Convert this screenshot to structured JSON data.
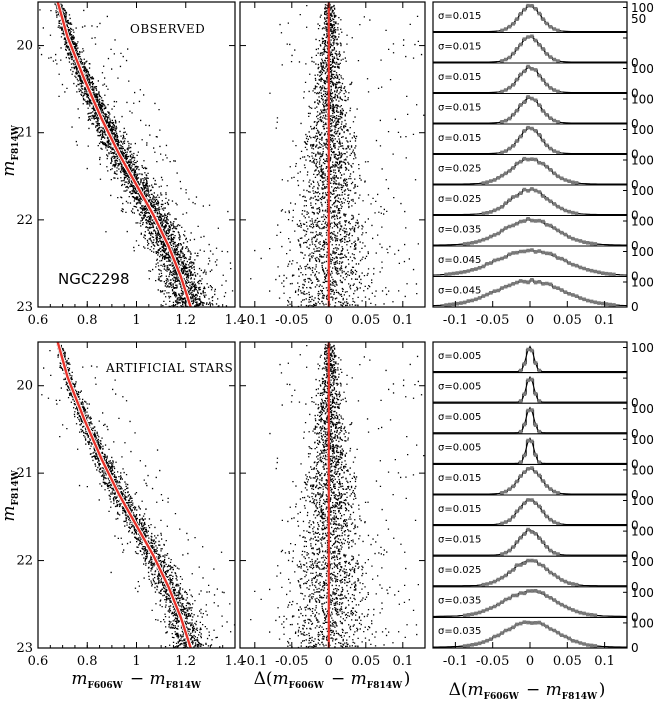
{
  "chart_data": [
    {
      "type": "scatter",
      "panel": "top-left",
      "annotation": "OBSERVED",
      "cluster_label": "NGC2298",
      "xlabel": "",
      "ylabel": "m_F814W",
      "xlim": [
        0.6,
        1.4
      ],
      "ylim": [
        23,
        19.5
      ],
      "xticks": [
        "0.6",
        "0.8",
        "1",
        "1.2",
        "1.4"
      ],
      "yticks": [
        "20",
        "21",
        "22",
        "23"
      ],
      "fiducial_line": {
        "color": "#e8342c",
        "points": [
          [
            0.68,
            19.5
          ],
          [
            0.72,
            19.9
          ],
          [
            0.79,
            20.4
          ],
          [
            0.86,
            20.85
          ],
          [
            0.93,
            21.25
          ],
          [
            1.0,
            21.6
          ],
          [
            1.07,
            21.95
          ],
          [
            1.13,
            22.3
          ],
          [
            1.18,
            22.65
          ],
          [
            1.22,
            23.0
          ]
        ]
      }
    },
    {
      "type": "scatter",
      "panel": "top-middle",
      "xlabel": "",
      "xlim": [
        -0.12,
        0.13
      ],
      "ylim": [
        23,
        19.5
      ],
      "xticks": [
        "-0.1",
        "-0.05",
        "0",
        "0.05",
        "0.1"
      ],
      "reference_line": {
        "x": 0,
        "color": "#e8342c"
      }
    },
    {
      "type": "histogram",
      "panel": "top-right",
      "xlim": [
        -0.13,
        0.13
      ],
      "xticks": [
        "-0.1",
        "-0.05",
        "0",
        "0.05",
        "0.1"
      ],
      "bins": [
        {
          "sigma_label": "σ=0.015",
          "sigma": 0.015,
          "ytick_top": "100",
          "ytick_mid": "50",
          "ytick_bottom": ""
        },
        {
          "sigma_label": "σ=0.015",
          "sigma": 0.015,
          "ytick_top": "",
          "ytick_bottom": "0"
        },
        {
          "sigma_label": "σ=0.015",
          "sigma": 0.015,
          "ytick_top": "100",
          "ytick_bottom": "0"
        },
        {
          "sigma_label": "σ=0.015",
          "sigma": 0.015,
          "ytick_top": "100",
          "ytick_bottom": "0"
        },
        {
          "sigma_label": "σ=0.015",
          "sigma": 0.015,
          "ytick_top": "100",
          "ytick_bottom": "0"
        },
        {
          "sigma_label": "σ=0.025",
          "sigma": 0.025,
          "ytick_top": "100",
          "ytick_bottom": "0"
        },
        {
          "sigma_label": "σ=0.025",
          "sigma": 0.025,
          "ytick_top": "100",
          "ytick_bottom": "0"
        },
        {
          "sigma_label": "σ=0.035",
          "sigma": 0.035,
          "ytick_top": "100",
          "ytick_bottom": "0"
        },
        {
          "sigma_label": "σ=0.045",
          "sigma": 0.045,
          "ytick_top": "100",
          "ytick_bottom": "0"
        },
        {
          "sigma_label": "σ=0.045",
          "sigma": 0.045,
          "ytick_top": "100",
          "ytick_bottom": "0"
        }
      ]
    },
    {
      "type": "scatter",
      "panel": "bottom-left",
      "annotation": "ARTIFICIAL STARS",
      "xlabel": "m_F606W − m_F814W",
      "ylabel": "m_F814W",
      "xlim": [
        0.6,
        1.4
      ],
      "ylim": [
        23,
        19.5
      ],
      "xticks": [
        "0.6",
        "0.8",
        "1",
        "1.2",
        "1.4"
      ],
      "yticks": [
        "20",
        "21",
        "22",
        "23"
      ],
      "fiducial_line": {
        "color": "#e8342c",
        "points": [
          [
            0.68,
            19.5
          ],
          [
            0.72,
            19.9
          ],
          [
            0.79,
            20.4
          ],
          [
            0.86,
            20.85
          ],
          [
            0.93,
            21.25
          ],
          [
            1.0,
            21.6
          ],
          [
            1.07,
            21.95
          ],
          [
            1.13,
            22.3
          ],
          [
            1.18,
            22.65
          ],
          [
            1.22,
            23.0
          ]
        ]
      }
    },
    {
      "type": "scatter",
      "panel": "bottom-middle",
      "xlabel": "Δ(m_F606W − m_F814W)",
      "xlim": [
        -0.12,
        0.13
      ],
      "ylim": [
        23,
        19.5
      ],
      "xticks": [
        "-0.1",
        "-0.05",
        "0",
        "0.05",
        "0.1"
      ],
      "reference_line": {
        "x": 0,
        "color": "#e8342c"
      }
    },
    {
      "type": "histogram",
      "panel": "bottom-right",
      "xlabel": "Δ(m_F606W − m_F814W)",
      "xlim": [
        -0.13,
        0.13
      ],
      "xticks": [
        "-0.1",
        "-0.05",
        "0",
        "0.05",
        "0.1"
      ],
      "bins": [
        {
          "sigma_label": "σ=0.005",
          "sigma": 0.005,
          "ytick_top": "100",
          "ytick_bottom": ""
        },
        {
          "sigma_label": "σ=0.005",
          "sigma": 0.005,
          "ytick_top": "",
          "ytick_bottom": "0"
        },
        {
          "sigma_label": "σ=0.005",
          "sigma": 0.005,
          "ytick_top": "100",
          "ytick_bottom": "0"
        },
        {
          "sigma_label": "σ=0.005",
          "sigma": 0.005,
          "ytick_top": "100",
          "ytick_bottom": "0"
        },
        {
          "sigma_label": "σ=0.015",
          "sigma": 0.015,
          "ytick_top": "100",
          "ytick_bottom": "0"
        },
        {
          "sigma_label": "σ=0.015",
          "sigma": 0.015,
          "ytick_top": "100",
          "ytick_bottom": "0"
        },
        {
          "sigma_label": "σ=0.015",
          "sigma": 0.015,
          "ytick_top": "100",
          "ytick_bottom": "0"
        },
        {
          "sigma_label": "σ=0.025",
          "sigma": 0.025,
          "ytick_top": "100",
          "ytick_bottom": "0"
        },
        {
          "sigma_label": "σ=0.035",
          "sigma": 0.035,
          "ytick_top": "100",
          "ytick_bottom": "0"
        },
        {
          "sigma_label": "σ=0.035",
          "sigma": 0.035,
          "ytick_top": "100",
          "ytick_bottom": "0"
        }
      ]
    }
  ],
  "colors": {
    "fiducial": "#e8342c",
    "points": "#000000",
    "histogram_points": "#7a7a7a"
  }
}
